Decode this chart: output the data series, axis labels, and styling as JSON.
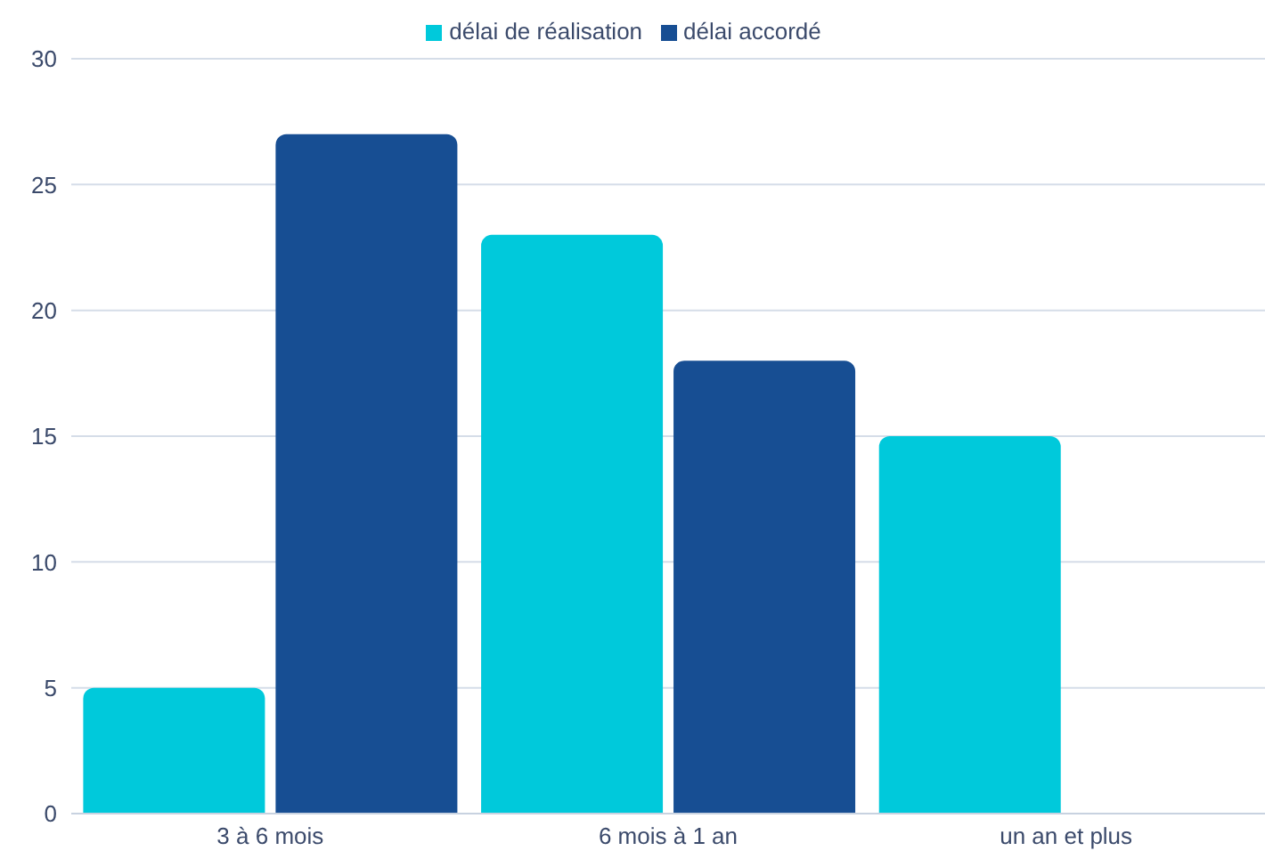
{
  "chart_data": {
    "type": "bar",
    "categories": [
      "3 à 6 mois",
      "6 mois à 1 an",
      "un an et plus"
    ],
    "series": [
      {
        "name": "délai de réalisation",
        "color": "#00c9db",
        "values": [
          5,
          23,
          15
        ]
      },
      {
        "name": "délai accordé",
        "color": "#174e93",
        "values": [
          27,
          18,
          0
        ]
      }
    ],
    "ylim": [
      0,
      30
    ],
    "yticks": [
      0,
      5,
      10,
      15,
      20,
      25,
      30
    ],
    "grid": "y",
    "legend": "top"
  }
}
